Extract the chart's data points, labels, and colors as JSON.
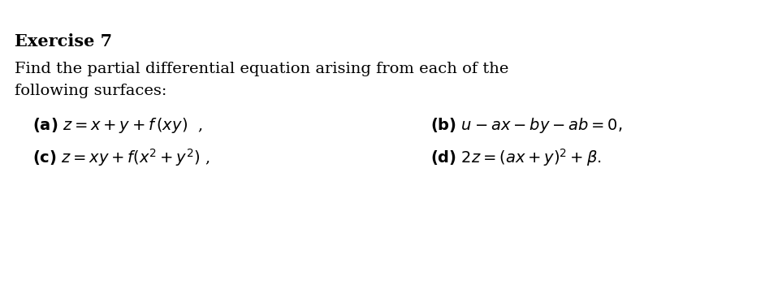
{
  "background_color": "#ffffff",
  "top_bar_color": "#1a1a1a",
  "title": "Exercise 7",
  "subtitle_line1": "Find the partial differential equation arising from each of the",
  "subtitle_line2": "following surfaces:",
  "item_a": "(a) $z = x + y + f\\,(xy)$  ,",
  "item_c": "(c) $z = xy + f(x^2 + y^2)$ ,",
  "item_b": "(b) $u$ $-ax-by$ $-ab = 0,$",
  "item_d": "(d) $2z = (ax + y)^2 + \\beta.$",
  "title_fontsize": 14,
  "body_fontsize": 14,
  "item_fontsize": 14
}
